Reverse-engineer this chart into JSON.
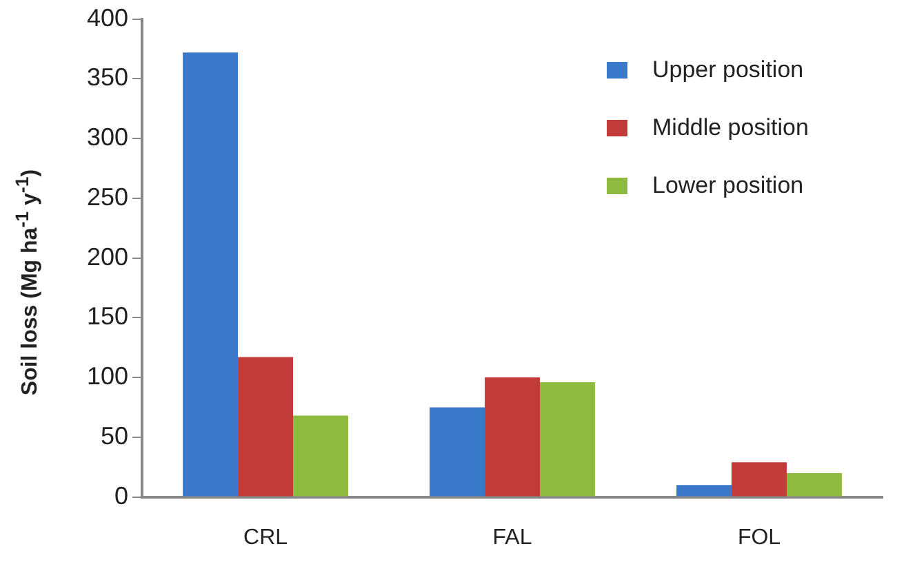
{
  "chart_data": {
    "type": "bar",
    "ylabel": "Soil loss (Mg ha$^{-1}$ y$^{-1}$)",
    "categories": [
      "CRL",
      "FAL",
      "FOL"
    ],
    "series": [
      {
        "name": "Upper position",
        "color": "#3a78c9",
        "values": [
          372,
          75,
          10
        ]
      },
      {
        "name": "Middle position",
        "color": "#c23b3a",
        "values": [
          117,
          100,
          29
        ]
      },
      {
        "name": "Lower position",
        "color": "#8dba3f",
        "values": [
          68,
          96,
          20
        ]
      }
    ],
    "ylim": [
      0,
      400
    ],
    "yticks": [
      0,
      50,
      100,
      150,
      200,
      250,
      300,
      350,
      400
    ],
    "grid": false,
    "legend": "top right"
  }
}
